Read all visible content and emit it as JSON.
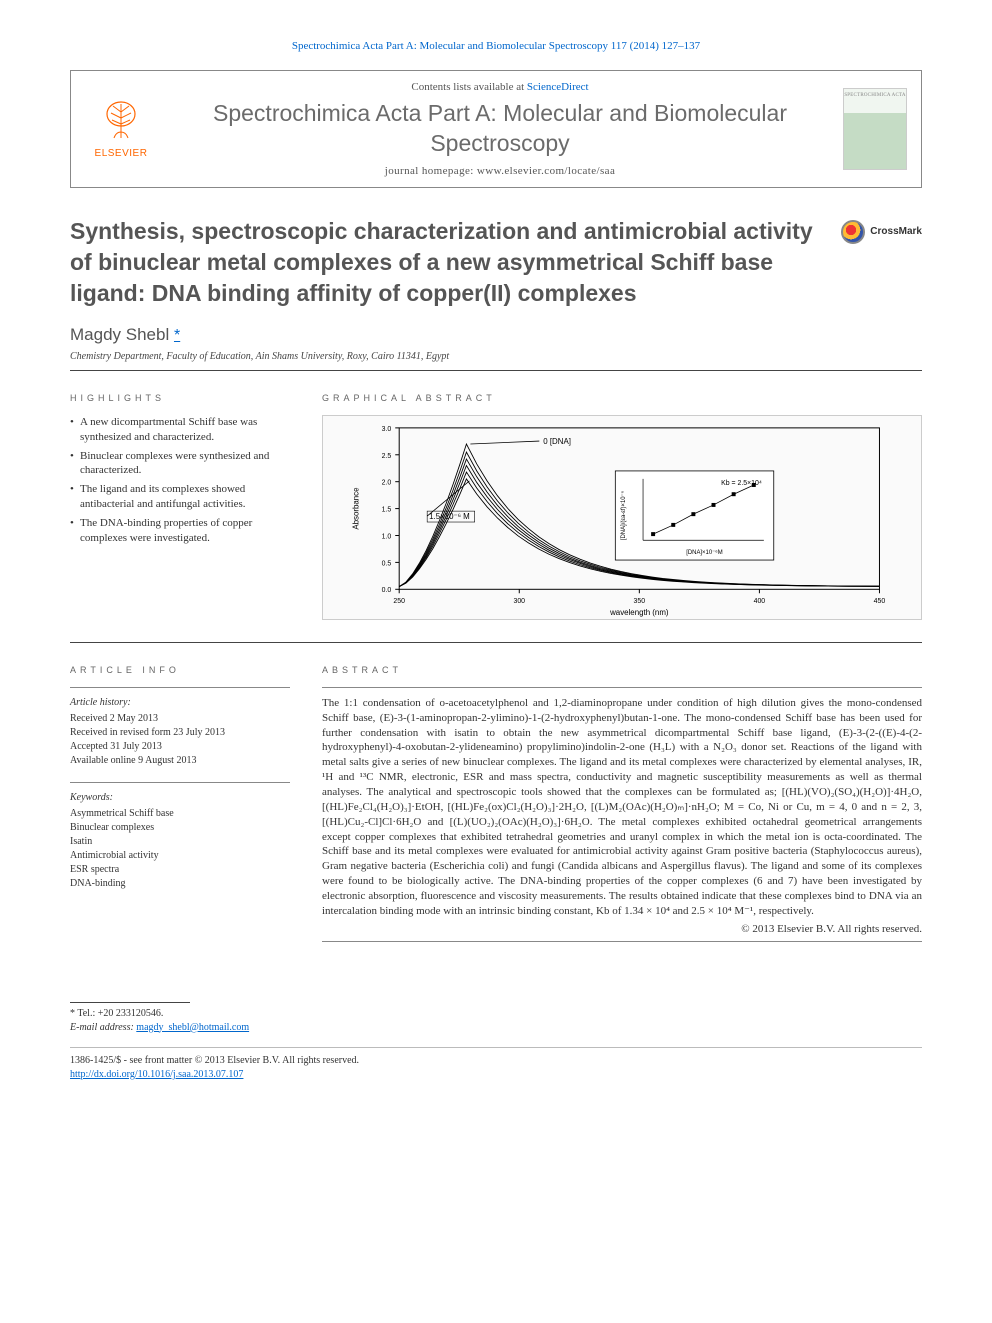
{
  "citation": "Spectrochimica Acta Part A: Molecular and Biomolecular Spectroscopy 117 (2014) 127–137",
  "journalBox": {
    "elsevierLabel": "ELSEVIER",
    "contentsPrefix": "Contents lists available at ",
    "contentsLink": "ScienceDirect",
    "journalName": "Spectrochimica Acta Part A: Molecular and Biomolecular Spectroscopy",
    "homepagePrefix": "journal homepage: ",
    "homepageUrl": "www.elsevier.com/locate/saa",
    "coverText": "SPECTROCHIMICA ACTA"
  },
  "title": "Synthesis, spectroscopic characterization and antimicrobial activity of binuclear metal complexes of a new asymmetrical Schiff base ligand: DNA binding affinity of copper(II) complexes",
  "crossmark": "CrossMark",
  "author": {
    "name": "Magdy Shebl",
    "affiliation": "Chemistry Department, Faculty of Education, Ain Shams University, Roxy, Cairo 11341, Egypt"
  },
  "highlights": {
    "label": "HIGHLIGHTS",
    "items": [
      "A new dicompartmental Schiff base was synthesized and characterized.",
      "Binuclear complexes were synthesized and characterized.",
      "The ligand and its complexes showed antibacterial and antifungal activities.",
      "The DNA-binding properties of copper complexes were investigated."
    ]
  },
  "graphicalAbstract": {
    "label": "GRAPHICAL ABSTRACT",
    "chart": {
      "type": "line",
      "xlabel": "wavelength (nm)",
      "ylabel": "Absorbance",
      "xlim": [
        250,
        450
      ],
      "ylim": [
        0.0,
        3.0
      ],
      "xtick_step": 50,
      "ytick_step": 0.5,
      "annotation1": "0 [DNA]",
      "annotation2": "1.5×10⁻⁶ M",
      "line_color": "#000000",
      "background_color": "#fafafa",
      "axis_color": "#000000",
      "label_fontsize": 8,
      "tick_fontsize": 7,
      "curves": [
        {
          "peak_x": 278,
          "peak_y": 2.7,
          "tail_y": 0.05
        },
        {
          "peak_x": 278,
          "peak_y": 2.55,
          "tail_y": 0.05
        },
        {
          "peak_x": 278,
          "peak_y": 2.42,
          "tail_y": 0.05
        },
        {
          "peak_x": 278,
          "peak_y": 2.3,
          "tail_y": 0.05
        },
        {
          "peak_x": 278,
          "peak_y": 2.18,
          "tail_y": 0.05
        },
        {
          "peak_x": 278,
          "peak_y": 2.05,
          "tail_y": 0.05
        }
      ],
      "inset": {
        "xlabel": "[DNA]×10⁻⁶M",
        "ylabel": "[DNA]/(εa-εf)×10⁻⁶",
        "annotation": "Kb = 2.5×10⁴",
        "xlim": [
          0.4,
          1.6
        ],
        "ylim": [
          3.0,
          5.0
        ],
        "points": [
          {
            "x": 0.5,
            "y": 3.2
          },
          {
            "x": 0.7,
            "y": 3.5
          },
          {
            "x": 0.9,
            "y": 3.85
          },
          {
            "x": 1.1,
            "y": 4.15
          },
          {
            "x": 1.3,
            "y": 4.5
          },
          {
            "x": 1.5,
            "y": 4.8
          }
        ],
        "marker_color": "#000000",
        "line_color": "#000000"
      }
    }
  },
  "articleInfo": {
    "label": "ARTICLE INFO",
    "historyHeading": "Article history:",
    "history": [
      "Received 2 May 2013",
      "Received in revised form 23 July 2013",
      "Accepted 31 July 2013",
      "Available online 9 August 2013"
    ],
    "keywordsHeading": "Keywords:",
    "keywords": [
      "Asymmetrical Schiff base",
      "Binuclear complexes",
      "Isatin",
      "Antimicrobial activity",
      "ESR spectra",
      "DNA-binding"
    ]
  },
  "abstract": {
    "label": "ABSTRACT",
    "text": "The 1:1 condensation of o-acetoacetylphenol and 1,2-diaminopropane under condition of high dilution gives the mono-condensed Schiff base, (E)-3-(1-aminopropan-2-ylimino)-1-(2-hydroxyphenyl)butan-1-one. The mono-condensed Schiff base has been used for further condensation with isatin to obtain the new asymmetrical dicompartmental Schiff base ligand, (E)-3-(2-((E)-4-(2-hydroxyphenyl)-4-oxobutan-2-ylideneamino) propylimino)indolin-2-one (H₃L) with a N₂O₃ donor set. Reactions of the ligand with metal salts give a series of new binuclear complexes. The ligand and its metal complexes were characterized by elemental analyses, IR, ¹H and ¹³C NMR, electronic, ESR and mass spectra, conductivity and magnetic susceptibility measurements as well as thermal analyses. The analytical and spectroscopic tools showed that the complexes can be formulated as; [(HL)(VO)₂(SO₄)(H₂O)]·4H₂O, [(HL)Fe₂Cl₄(H₂O)₃]·EtOH, [(HL)Fe₂(ox)Cl₂(H₂O)₃]·2H₂O, [(L)M₂(OAc)(H₂O)ₘ]·nH₂O; M = Co, Ni or Cu, m = 4, 0 and n = 2, 3, [(HL)Cu₂-Cl]Cl·6H₂O and [(L)(UO₂)₂(OAc)(H₂O)₃]·6H₂O. The metal complexes exhibited octahedral geometrical arrangements except copper complexes that exhibited tetrahedral geometries and uranyl complex in which the metal ion is octa-coordinated. The Schiff base and its metal complexes were evaluated for antimicrobial activity against Gram positive bacteria (Staphylococcus aureus), Gram negative bacteria (Escherichia coli) and fungi (Candida albicans and Aspergillus flavus). The ligand and some of its complexes were found to be biologically active. The DNA-binding properties of the copper complexes (6 and 7) have been investigated by electronic absorption, fluorescence and viscosity measurements. The results obtained indicate that these complexes bind to DNA via an intercalation binding mode with an intrinsic binding constant, Kb of 1.34 × 10⁴ and 2.5 × 10⁴ M⁻¹, respectively.",
    "copyright": "© 2013 Elsevier B.V. All rights reserved."
  },
  "footnote": {
    "tel": "* Tel.: +20 233120546.",
    "emailLabel": "E-mail address: ",
    "email": "magdy_shebl@hotmail.com"
  },
  "bottom": {
    "line1": "1386-1425/$ - see front matter © 2013 Elsevier B.V. All rights reserved.",
    "doiUrl": "http://dx.doi.org/10.1016/j.saa.2013.07.107"
  }
}
